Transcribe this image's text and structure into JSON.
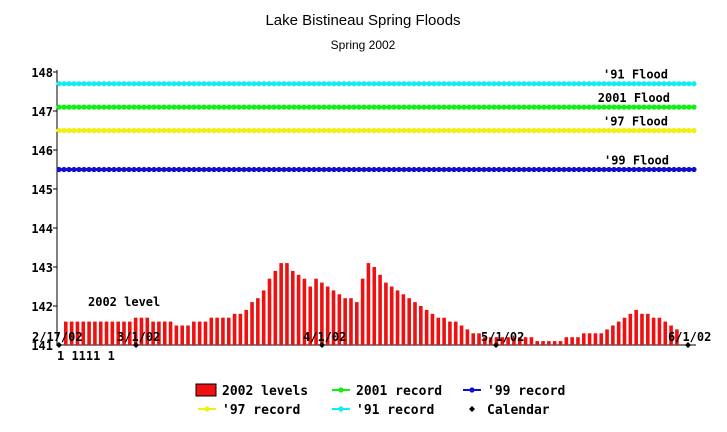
{
  "chart_data": {
    "type": "bar",
    "title": "Lake Bistineau Spring Floods",
    "subtitle": "Spring 2002",
    "xlabel": "",
    "ylabel": "",
    "ylim": [
      141,
      148
    ],
    "y_ticks": [
      "141",
      "142",
      "143",
      "144",
      "145",
      "146",
      "147",
      "148"
    ],
    "x_ticks": [
      "2/17/02",
      "3/1/02",
      "4/1/02",
      "5/1/02",
      "6/1/02"
    ],
    "x_minor_labels": "1 1111 1",
    "grid": false,
    "legend_position": "bottom",
    "levels_2002": [
      141.6,
      141.6,
      141.6,
      141.6,
      141.6,
      141.6,
      141.6,
      141.6,
      141.6,
      141.6,
      141.6,
      141.6,
      141.7,
      141.7,
      141.7,
      141.6,
      141.6,
      141.6,
      141.6,
      141.5,
      141.5,
      141.5,
      141.6,
      141.6,
      141.6,
      141.7,
      141.7,
      141.7,
      141.7,
      141.8,
      141.8,
      141.9,
      142.1,
      142.2,
      142.4,
      142.7,
      142.9,
      143.1,
      143.1,
      142.9,
      142.8,
      142.7,
      142.5,
      142.7,
      142.6,
      142.5,
      142.4,
      142.3,
      142.2,
      142.2,
      142.1,
      142.7,
      143.1,
      143.0,
      142.8,
      142.6,
      142.5,
      142.4,
      142.3,
      142.2,
      142.1,
      142.0,
      141.9,
      141.8,
      141.7,
      141.7,
      141.6,
      141.6,
      141.5,
      141.4,
      141.3,
      141.3,
      141.2,
      141.2,
      141.2,
      141.2,
      141.2,
      141.2,
      141.2,
      141.2,
      141.2,
      141.1,
      141.1,
      141.1,
      141.1,
      141.1,
      141.2,
      141.2,
      141.2,
      141.3,
      141.3,
      141.3,
      141.3,
      141.4,
      141.5,
      141.6,
      141.7,
      141.8,
      141.9,
      141.8,
      141.8,
      141.7,
      141.7,
      141.6,
      141.5,
      141.4
    ],
    "annotations": [
      {
        "text": "'91 Flood",
        "y": 147.7
      },
      {
        "text": "2001 Flood",
        "y": 147.1
      },
      {
        "text": "'97 Flood",
        "y": 146.5
      },
      {
        "text": "'99 Flood",
        "y": 145.5
      },
      {
        "text": "2002 level",
        "y": 141.9
      }
    ],
    "series": [
      {
        "name": "2002 levels",
        "kind": "bars",
        "color": "#ee1111"
      },
      {
        "name": "2001 record",
        "kind": "line",
        "value": 147.1,
        "color": "#11ee11"
      },
      {
        "name": "'99 record",
        "kind": "line",
        "value": 145.5,
        "color": "#1111cc"
      },
      {
        "name": "'97 record",
        "kind": "line",
        "value": 146.5,
        "color": "#f0f011"
      },
      {
        "name": "'91 record",
        "kind": "line",
        "value": 147.7,
        "color": "#11eeee"
      },
      {
        "name": "Calendar",
        "kind": "markers",
        "color": "#000000"
      }
    ]
  }
}
